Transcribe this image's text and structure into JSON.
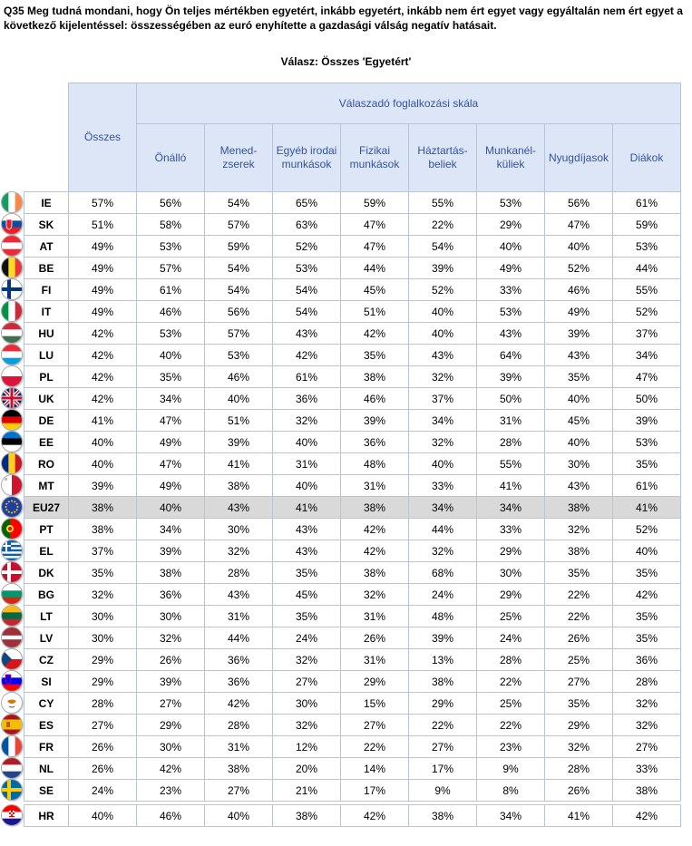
{
  "question": "Q35 Meg tudná mondani, hogy Ön teljes mértékben egyetért, inkább egyetért, inkább nem ért egyet vagy egyáltalán nem ért egyet a következő kijelentéssel: összességében az euró enyhítette a gazdasági válság negatív hatásait.",
  "subtitle": "Válasz: Összes 'Egyetért'",
  "table": {
    "total_header": "Összes",
    "group_header": "Válaszadó foglalkozási skála",
    "columns": [
      [
        "Önálló"
      ],
      [
        "Mened-",
        "zserek"
      ],
      [
        "Egyéb irodai",
        "munkások"
      ],
      [
        "Fizikai",
        "munkások"
      ],
      [
        "Háztartás-",
        "beliek"
      ],
      [
        "Munkanél-",
        "küliek"
      ],
      [
        "Nyugdíjasok"
      ],
      [
        "Diákok"
      ]
    ],
    "rows": [
      {
        "code": "IE",
        "total": "57%",
        "values": [
          "56%",
          "54%",
          "65%",
          "59%",
          "55%",
          "53%",
          "56%",
          "61%"
        ]
      },
      {
        "code": "SK",
        "total": "51%",
        "values": [
          "58%",
          "57%",
          "63%",
          "47%",
          "22%",
          "29%",
          "47%",
          "59%"
        ]
      },
      {
        "code": "AT",
        "total": "49%",
        "values": [
          "53%",
          "59%",
          "52%",
          "47%",
          "54%",
          "40%",
          "40%",
          "53%"
        ]
      },
      {
        "code": "BE",
        "total": "49%",
        "values": [
          "57%",
          "54%",
          "53%",
          "44%",
          "39%",
          "49%",
          "52%",
          "44%"
        ]
      },
      {
        "code": "FI",
        "total": "49%",
        "values": [
          "61%",
          "54%",
          "54%",
          "45%",
          "52%",
          "33%",
          "46%",
          "55%"
        ]
      },
      {
        "code": "IT",
        "total": "49%",
        "values": [
          "46%",
          "56%",
          "54%",
          "51%",
          "40%",
          "53%",
          "49%",
          "52%"
        ]
      },
      {
        "code": "HU",
        "total": "42%",
        "values": [
          "53%",
          "57%",
          "43%",
          "42%",
          "40%",
          "43%",
          "39%",
          "37%"
        ]
      },
      {
        "code": "LU",
        "total": "42%",
        "values": [
          "40%",
          "53%",
          "42%",
          "35%",
          "43%",
          "64%",
          "43%",
          "34%"
        ]
      },
      {
        "code": "PL",
        "total": "42%",
        "values": [
          "35%",
          "46%",
          "61%",
          "38%",
          "32%",
          "39%",
          "35%",
          "47%"
        ]
      },
      {
        "code": "UK",
        "total": "42%",
        "values": [
          "34%",
          "40%",
          "36%",
          "46%",
          "37%",
          "50%",
          "40%",
          "50%"
        ]
      },
      {
        "code": "DE",
        "total": "41%",
        "values": [
          "47%",
          "51%",
          "32%",
          "39%",
          "34%",
          "31%",
          "45%",
          "39%"
        ]
      },
      {
        "code": "EE",
        "total": "40%",
        "values": [
          "49%",
          "39%",
          "40%",
          "36%",
          "32%",
          "28%",
          "40%",
          "53%"
        ]
      },
      {
        "code": "RO",
        "total": "40%",
        "values": [
          "47%",
          "41%",
          "31%",
          "48%",
          "40%",
          "55%",
          "30%",
          "35%"
        ]
      },
      {
        "code": "MT",
        "total": "39%",
        "values": [
          "49%",
          "38%",
          "40%",
          "31%",
          "33%",
          "41%",
          "43%",
          "61%"
        ]
      },
      {
        "code": "EU27",
        "total": "38%",
        "values": [
          "40%",
          "43%",
          "41%",
          "38%",
          "34%",
          "34%",
          "38%",
          "41%"
        ],
        "highlight": true
      },
      {
        "code": "PT",
        "total": "38%",
        "values": [
          "34%",
          "30%",
          "43%",
          "42%",
          "44%",
          "33%",
          "32%",
          "52%"
        ]
      },
      {
        "code": "EL",
        "total": "37%",
        "values": [
          "39%",
          "32%",
          "43%",
          "42%",
          "32%",
          "29%",
          "38%",
          "40%"
        ]
      },
      {
        "code": "DK",
        "total": "35%",
        "values": [
          "38%",
          "28%",
          "35%",
          "38%",
          "68%",
          "30%",
          "35%",
          "35%"
        ]
      },
      {
        "code": "BG",
        "total": "32%",
        "values": [
          "36%",
          "43%",
          "45%",
          "32%",
          "24%",
          "29%",
          "22%",
          "42%"
        ]
      },
      {
        "code": "LT",
        "total": "30%",
        "values": [
          "30%",
          "31%",
          "35%",
          "31%",
          "48%",
          "25%",
          "22%",
          "35%"
        ]
      },
      {
        "code": "LV",
        "total": "30%",
        "values": [
          "32%",
          "44%",
          "24%",
          "26%",
          "39%",
          "24%",
          "26%",
          "35%"
        ]
      },
      {
        "code": "CZ",
        "total": "29%",
        "values": [
          "26%",
          "36%",
          "32%",
          "31%",
          "13%",
          "28%",
          "25%",
          "36%"
        ]
      },
      {
        "code": "SI",
        "total": "29%",
        "values": [
          "39%",
          "36%",
          "27%",
          "29%",
          "38%",
          "22%",
          "27%",
          "28%"
        ]
      },
      {
        "code": "CY",
        "total": "28%",
        "values": [
          "27%",
          "42%",
          "30%",
          "15%",
          "29%",
          "25%",
          "35%",
          "32%"
        ]
      },
      {
        "code": "ES",
        "total": "27%",
        "values": [
          "29%",
          "28%",
          "32%",
          "27%",
          "22%",
          "22%",
          "29%",
          "32%"
        ]
      },
      {
        "code": "FR",
        "total": "26%",
        "values": [
          "30%",
          "31%",
          "12%",
          "22%",
          "27%",
          "23%",
          "32%",
          "27%"
        ]
      },
      {
        "code": "NL",
        "total": "26%",
        "values": [
          "42%",
          "38%",
          "20%",
          "14%",
          "17%",
          "9%",
          "28%",
          "33%"
        ]
      },
      {
        "code": "SE",
        "total": "24%",
        "values": [
          "23%",
          "27%",
          "21%",
          "17%",
          "9%",
          "8%",
          "26%",
          "38%"
        ]
      },
      {
        "code": "HR",
        "total": "40%",
        "values": [
          "46%",
          "40%",
          "38%",
          "42%",
          "38%",
          "34%",
          "41%",
          "42%"
        ],
        "separate": true
      }
    ]
  },
  "flag_icons": {
    "IE": "ireland-flag-icon",
    "SK": "slovakia-flag-icon",
    "AT": "austria-flag-icon",
    "BE": "belgium-flag-icon",
    "FI": "finland-flag-icon",
    "IT": "italy-flag-icon",
    "HU": "hungary-flag-icon",
    "LU": "luxembourg-flag-icon",
    "PL": "poland-flag-icon",
    "UK": "uk-flag-icon",
    "DE": "germany-flag-icon",
    "EE": "estonia-flag-icon",
    "RO": "romania-flag-icon",
    "MT": "malta-flag-icon",
    "EU27": "eu-flag-icon",
    "PT": "portugal-flag-icon",
    "EL": "greece-flag-icon",
    "DK": "denmark-flag-icon",
    "BG": "bulgaria-flag-icon",
    "LT": "lithuania-flag-icon",
    "LV": "latvia-flag-icon",
    "CZ": "czechia-flag-icon",
    "SI": "slovenia-flag-icon",
    "CY": "cyprus-flag-icon",
    "ES": "spain-flag-icon",
    "FR": "france-flag-icon",
    "NL": "netherlands-flag-icon",
    "SE": "sweden-flag-icon",
    "HR": "croatia-flag-icon"
  },
  "colors": {
    "header_bg": "#dde6f6",
    "header_text": "#3353a0",
    "grid": "#b8c4d8",
    "highlight_row": "#d9d9d9"
  }
}
